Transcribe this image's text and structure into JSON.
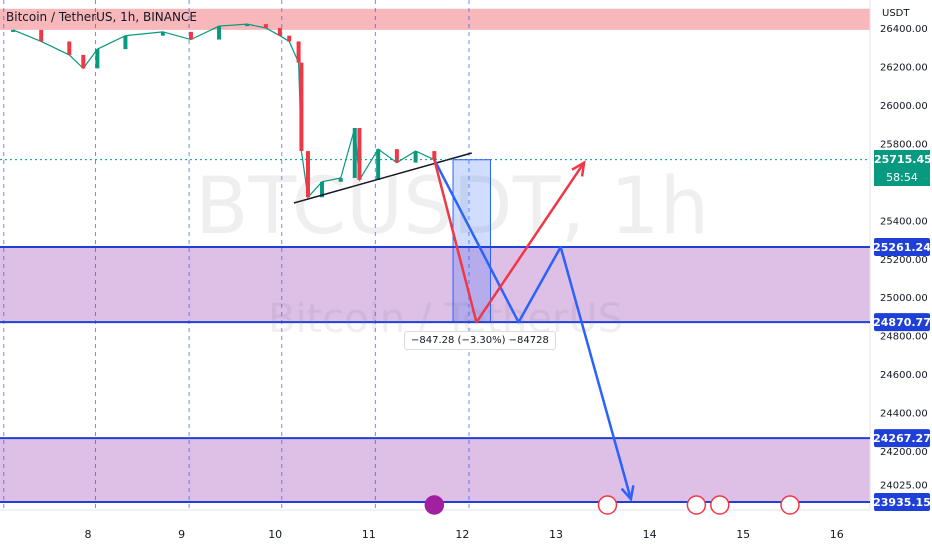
{
  "header": {
    "title": "Bitcoin / TetherUS, 1h, BINANCE",
    "currency": "USDT"
  },
  "watermark": {
    "symbol": "BTCUSDT, 1h",
    "name": "Bitcoin / TetherUS"
  },
  "measure_label": "−847.28 (−3.30%) −84728",
  "current_price": {
    "value": "25715.45",
    "countdown": "58:54",
    "color": "#089981"
  },
  "chart_data": {
    "type": "candlestick",
    "title": "Bitcoin / TetherUS, 1h, BINANCE",
    "xlabel": "",
    "ylabel": "USDT",
    "x_ticks": [
      "8",
      "9",
      "10",
      "11",
      "12",
      "13",
      "14",
      "15",
      "16"
    ],
    "y_ticks": [
      "26400.00",
      "26200.00",
      "26000.00",
      "25800.00",
      "25400.00",
      "25200.00",
      "25000.00",
      "24800.00",
      "24600.00",
      "24400.00",
      "24200.00",
      "24025.00"
    ],
    "ylim": [
      23935,
      26420
    ],
    "price_series": [
      {
        "day": 7.2,
        "price": 26390
      },
      {
        "day": 7.5,
        "price": 26330
      },
      {
        "day": 7.8,
        "price": 26260
      },
      {
        "day": 7.95,
        "price": 26190
      },
      {
        "day": 8.1,
        "price": 26290
      },
      {
        "day": 8.4,
        "price": 26360
      },
      {
        "day": 8.8,
        "price": 26380
      },
      {
        "day": 9.1,
        "price": 26340
      },
      {
        "day": 9.4,
        "price": 26410
      },
      {
        "day": 9.7,
        "price": 26420
      },
      {
        "day": 9.9,
        "price": 26400
      },
      {
        "day": 10.05,
        "price": 26360
      },
      {
        "day": 10.15,
        "price": 26330
      },
      {
        "day": 10.25,
        "price": 26220
      },
      {
        "day": 10.28,
        "price": 25760
      },
      {
        "day": 10.35,
        "price": 25520
      },
      {
        "day": 10.5,
        "price": 25600
      },
      {
        "day": 10.7,
        "price": 25620
      },
      {
        "day": 10.85,
        "price": 25880
      },
      {
        "day": 10.9,
        "price": 25610
      },
      {
        "day": 11.1,
        "price": 25770
      },
      {
        "day": 11.3,
        "price": 25700
      },
      {
        "day": 11.5,
        "price": 25760
      },
      {
        "day": 11.7,
        "price": 25715
      }
    ],
    "levels": [
      {
        "label": "25261.24",
        "value": 25261.24
      },
      {
        "label": "24870.77",
        "value": 24870.77
      },
      {
        "label": "24267.27",
        "value": 24267.27
      },
      {
        "label": "23935.15",
        "value": 23935.15
      }
    ],
    "zones": [
      {
        "from": 24870.77,
        "to": 25261.24,
        "color": "#d8b4e2"
      },
      {
        "from": 23935.15,
        "to": 24267.27,
        "color": "#d8b4e2"
      },
      {
        "from": 26390,
        "to": 26500,
        "color": "#f7b0b4"
      }
    ],
    "trendline": [
      {
        "day": 10.2,
        "price": 25490
      },
      {
        "day": 12.1,
        "price": 25750
      }
    ],
    "measure_box": {
      "from_day": 11.9,
      "to_day": 12.3,
      "from_price": 25715,
      "to_price": 24870
    },
    "projection_red": [
      {
        "day": 11.7,
        "price": 25715
      },
      {
        "day": 12.15,
        "price": 24870
      },
      {
        "day": 13.3,
        "price": 25700
      }
    ],
    "projection_blue": [
      {
        "day": 11.7,
        "price": 25715
      },
      {
        "day": 12.6,
        "price": 24870
      },
      {
        "day": 13.05,
        "price": 25261
      },
      {
        "day": 13.8,
        "price": 23950
      }
    ],
    "events_at_days": [
      11.7,
      13.55,
      14.5,
      14.75,
      15.5
    ],
    "dashed_day_lines": [
      7.1,
      8.08,
      9.08,
      10.07,
      11.07,
      12.07
    ]
  },
  "colors": {
    "level_line": "#1e40d8",
    "red_arrow": "#f23645",
    "blue_arrow": "#2962ff",
    "label_bg": "#1e40d8"
  }
}
